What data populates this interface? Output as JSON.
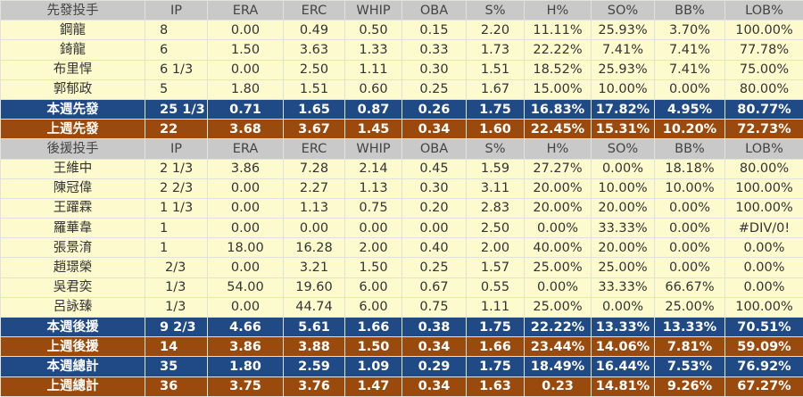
{
  "columns": [
    "IP",
    "ERA",
    "ERC",
    "WHIP",
    "OBA",
    "S%",
    "H%",
    "SO%",
    "BB%",
    "LOB%"
  ],
  "colors": {
    "header": "#c9c9c9",
    "player": "#fdfbcd",
    "this_week": "#1f4a86",
    "last_week": "#9a4a0c"
  },
  "rows": [
    {
      "type": "header",
      "cells": [
        "先發投手",
        "IP",
        "ERA",
        "ERC",
        "WHIP",
        "OBA",
        "S%",
        "H%",
        "SO%",
        "BB%",
        "LOB%"
      ]
    },
    {
      "type": "player",
      "cells": [
        "鋼龍",
        "8",
        "0.00",
        "0.49",
        "0.50",
        "0.15",
        "2.20",
        "11.11%",
        "25.93%",
        "3.70%",
        "100.00%"
      ]
    },
    {
      "type": "player",
      "cells": [
        "錡龍",
        "6",
        "1.50",
        "3.63",
        "1.33",
        "0.33",
        "1.73",
        "22.22%",
        "7.41%",
        "7.41%",
        "77.78%"
      ]
    },
    {
      "type": "player",
      "cells": [
        "布里悍",
        "6 1/3",
        "0.00",
        "2.50",
        "1.11",
        "0.30",
        "1.51",
        "18.52%",
        "25.93%",
        "7.41%",
        "75.00%"
      ]
    },
    {
      "type": "player",
      "cells": [
        "郭郁政",
        "5",
        "1.80",
        "1.51",
        "0.60",
        "0.25",
        "1.67",
        "15.00%",
        "10.00%",
        "0.00%",
        "80.00%"
      ]
    },
    {
      "type": "blue",
      "cells": [
        "本週先發",
        "25 1/3",
        "0.71",
        "1.65",
        "0.87",
        "0.26",
        "1.75",
        "16.83%",
        "17.82%",
        "4.95%",
        "80.77%"
      ]
    },
    {
      "type": "brown",
      "cells": [
        "上週先發",
        "22",
        "3.68",
        "3.67",
        "1.45",
        "0.34",
        "1.60",
        "22.45%",
        "15.31%",
        "10.20%",
        "72.73%"
      ]
    },
    {
      "type": "header",
      "cells": [
        "後援投手",
        "IP",
        "ERA",
        "ERC",
        "WHIP",
        "OBA",
        "S%",
        "H%",
        "SO%",
        "BB%",
        "LOB%"
      ]
    },
    {
      "type": "player",
      "cells": [
        "王維中",
        "2 1/3",
        "3.86",
        "7.28",
        "2.14",
        "0.45",
        "1.59",
        "27.27%",
        "0.00%",
        "18.18%",
        "80.00%"
      ]
    },
    {
      "type": "player",
      "cells": [
        "陳冠偉",
        "2 2/3",
        "0.00",
        "2.27",
        "1.13",
        "0.30",
        "3.11",
        "20.00%",
        "10.00%",
        "10.00%",
        "100.00%"
      ]
    },
    {
      "type": "player",
      "cells": [
        "王躍霖",
        "1 1/3",
        "0.00",
        "1.13",
        "0.75",
        "0.20",
        "2.83",
        "20.00%",
        "20.00%",
        "0.00%",
        "100.00%"
      ]
    },
    {
      "type": "player",
      "cells": [
        "羅華韋",
        "1",
        "0.00",
        "0.00",
        "0.00",
        "0.00",
        "2.50",
        "0.00%",
        "33.33%",
        "0.00%",
        "#DIV/0!"
      ]
    },
    {
      "type": "player",
      "cells": [
        "張景淯",
        "1",
        "18.00",
        "16.28",
        "2.00",
        "0.40",
        "2.00",
        "40.00%",
        "20.00%",
        "0.00%",
        "0.00%"
      ]
    },
    {
      "type": "player",
      "cells": [
        "趙璟榮",
        "2/3",
        "0.00",
        "3.21",
        "1.50",
        "0.25",
        "1.57",
        "25.00%",
        "25.00%",
        "0.00%",
        "0.00%"
      ]
    },
    {
      "type": "player",
      "cells": [
        "吳君奕",
        "1/3",
        "54.00",
        "19.60",
        "6.00",
        "0.67",
        "0.55",
        "0.00%",
        "33.33%",
        "66.67%",
        "0.00%"
      ]
    },
    {
      "type": "player",
      "cells": [
        "呂詠臻",
        "1/3",
        "0.00",
        "44.74",
        "6.00",
        "0.75",
        "1.11",
        "25.00%",
        "0.00%",
        "25.00%",
        "100.00%"
      ]
    },
    {
      "type": "blue",
      "cells": [
        "本週後援",
        "9 2/3",
        "4.66",
        "5.61",
        "1.66",
        "0.38",
        "1.75",
        "22.22%",
        "13.33%",
        "13.33%",
        "70.51%"
      ]
    },
    {
      "type": "brown",
      "cells": [
        "上週後援",
        "14",
        "3.86",
        "3.88",
        "1.50",
        "0.34",
        "1.66",
        "23.44%",
        "14.06%",
        "7.81%",
        "59.09%"
      ]
    },
    {
      "type": "blue",
      "cells": [
        "本週總計",
        "35",
        "1.80",
        "2.59",
        "1.09",
        "0.29",
        "1.75",
        "18.49%",
        "16.44%",
        "7.53%",
        "76.92%"
      ]
    },
    {
      "type": "brown",
      "cells": [
        "上週總計",
        "36",
        "3.75",
        "3.76",
        "1.47",
        "0.34",
        "1.63",
        "0.23",
        "14.81%",
        "9.26%",
        "67.27%"
      ]
    }
  ]
}
